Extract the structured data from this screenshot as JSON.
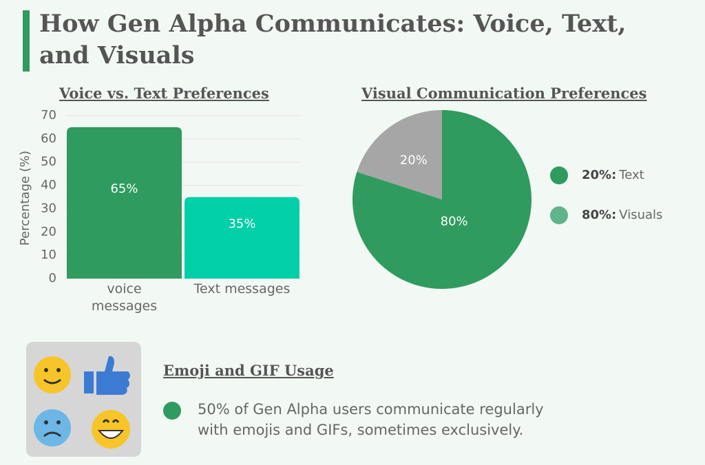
{
  "title": "How Gen Alpha Communicates: Voice, Text, and Visuals",
  "chart_data": [
    {
      "type": "bar",
      "title": "Voice vs. Text Preferences",
      "ylabel": "Percentage (%)",
      "categories": [
        "voice messages",
        "Text messages"
      ],
      "values": [
        65,
        35
      ],
      "value_labels": [
        "65%",
        "35%"
      ],
      "colors": [
        "#2f9b5f",
        "#00cfa8"
      ],
      "ylim": [
        0,
        70
      ],
      "yticks": [
        0,
        10,
        20,
        30,
        40,
        50,
        60,
        70
      ],
      "grid": true
    },
    {
      "type": "pie",
      "title": "Visual Communication Preferences",
      "categories": [
        "Visuals",
        "Text"
      ],
      "values": [
        80,
        20
      ],
      "value_labels": [
        "80%",
        "20%"
      ],
      "colors": [
        "#2f9b5f",
        "#a6a6a6"
      ],
      "legend": [
        {
          "bold": "20%:",
          "text": "Text",
          "color": "#2f9b5f"
        },
        {
          "bold": "80%:",
          "text": "Visuals",
          "color": "#5fb48c"
        }
      ]
    }
  ],
  "emoji_section": {
    "heading": "Emoji and GIF Usage",
    "lines": [
      "50% of Gen Alpha users communicate regularly",
      "with emojis and GIFs, sometimes exclusively."
    ]
  }
}
